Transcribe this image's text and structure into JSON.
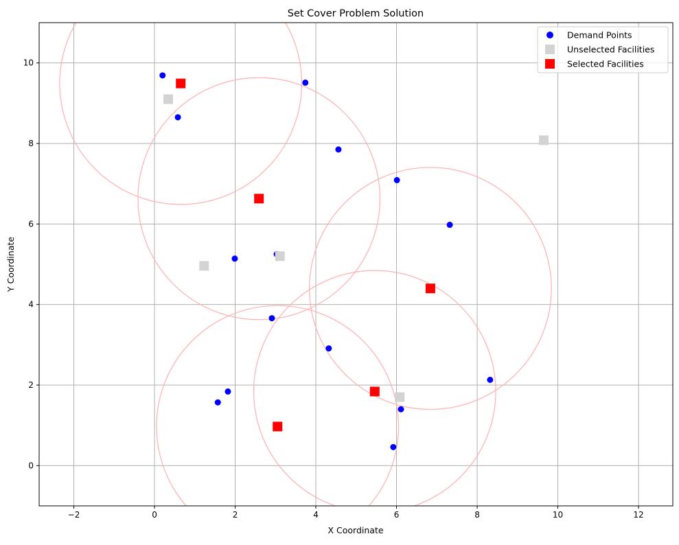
{
  "chart_data": {
    "type": "scatter",
    "title": "Set Cover Problem Solution",
    "xlabel": "X Coordinate",
    "ylabel": "Y Coordinate",
    "xlim": [
      -2.86,
      12.85
    ],
    "ylim": [
      -1.0,
      11.0
    ],
    "xticks": [
      -2,
      0,
      2,
      4,
      6,
      8,
      10,
      12
    ],
    "yticks": [
      0,
      2,
      4,
      6,
      8,
      10
    ],
    "grid": true,
    "legend_position": "top-right",
    "coverage_radius": 3.0,
    "series": [
      {
        "name": "Demand Points",
        "marker": "circle",
        "color": "#0000ff",
        "points": [
          [
            0.2,
            9.69
          ],
          [
            0.58,
            8.65
          ],
          [
            3.74,
            9.51
          ],
          [
            4.56,
            7.85
          ],
          [
            6.01,
            7.09
          ],
          [
            7.32,
            5.98
          ],
          [
            1.99,
            5.14
          ],
          [
            3.03,
            5.25
          ],
          [
            2.91,
            3.66
          ],
          [
            4.32,
            2.91
          ],
          [
            8.32,
            2.13
          ],
          [
            1.82,
            1.84
          ],
          [
            1.57,
            1.57
          ],
          [
            6.11,
            1.4
          ],
          [
            5.92,
            0.46
          ]
        ]
      },
      {
        "name": "Unselected Facilities",
        "marker": "square",
        "color": "#d3d3d3",
        "points": [
          [
            0.34,
            9.1
          ],
          [
            1.23,
            4.96
          ],
          [
            3.11,
            5.2
          ],
          [
            6.08,
            1.7
          ],
          [
            9.65,
            8.08
          ]
        ]
      },
      {
        "name": "Selected Facilities",
        "marker": "square",
        "color": "#ff0000",
        "points": [
          [
            0.65,
            9.49
          ],
          [
            2.59,
            6.63
          ],
          [
            6.84,
            4.4
          ],
          [
            5.46,
            1.84
          ],
          [
            3.05,
            0.97
          ]
        ]
      }
    ],
    "circle_color": "#ffb0b0"
  }
}
